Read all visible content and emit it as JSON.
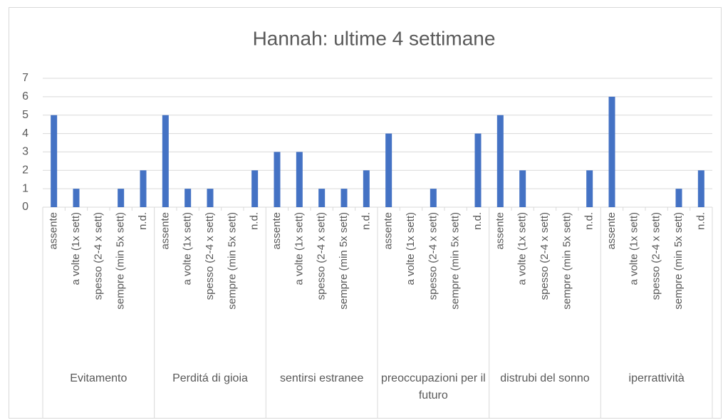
{
  "chart_data": {
    "type": "bar",
    "title": "Hannah: ultime 4 settimane",
    "groups": [
      "Evitamento",
      "Perditá di gioia",
      "sentirsi estranee",
      "preoccupazioni per il futuro",
      "distrubi del sonno",
      "iperrattività"
    ],
    "categories": [
      "assente",
      "a volte (1x sett)",
      "spesso (2-4 x sett)",
      "sempre (min 5x sett)",
      "n.d.",
      "assente",
      "a volte (1x sett)",
      "spesso (2-4 x sett)",
      "sempre (min 5x sett)",
      "n.d.",
      "assente",
      "a volte (1x sett)",
      "spesso (2-4 x sett)",
      "sempre (min 5x sett)",
      "n.d.",
      "assente",
      "a volte (1x sett)",
      "spesso (2-4 x sett)",
      "sempre (min 5x sett)",
      "n.d.",
      "assente",
      "a volte (1x sett)",
      "spesso (2-4 x sett)",
      "sempre (min 5x sett)",
      "n.d.",
      "assente",
      "a volte (1x sett)",
      "spesso (2-4 x sett)",
      "sempre (min 5x sett)",
      "n.d."
    ],
    "values": [
      5,
      1,
      0,
      1,
      2,
      5,
      1,
      1,
      0,
      2,
      3,
      3,
      1,
      1,
      2,
      4,
      0,
      1,
      0,
      4,
      5,
      2,
      0,
      0,
      2,
      6,
      0,
      0,
      1,
      2
    ],
    "color": "#4472c4",
    "ylim": [
      0,
      7
    ],
    "yticks": [
      0,
      1,
      2,
      3,
      4,
      5,
      6,
      7
    ],
    "grid": true
  }
}
